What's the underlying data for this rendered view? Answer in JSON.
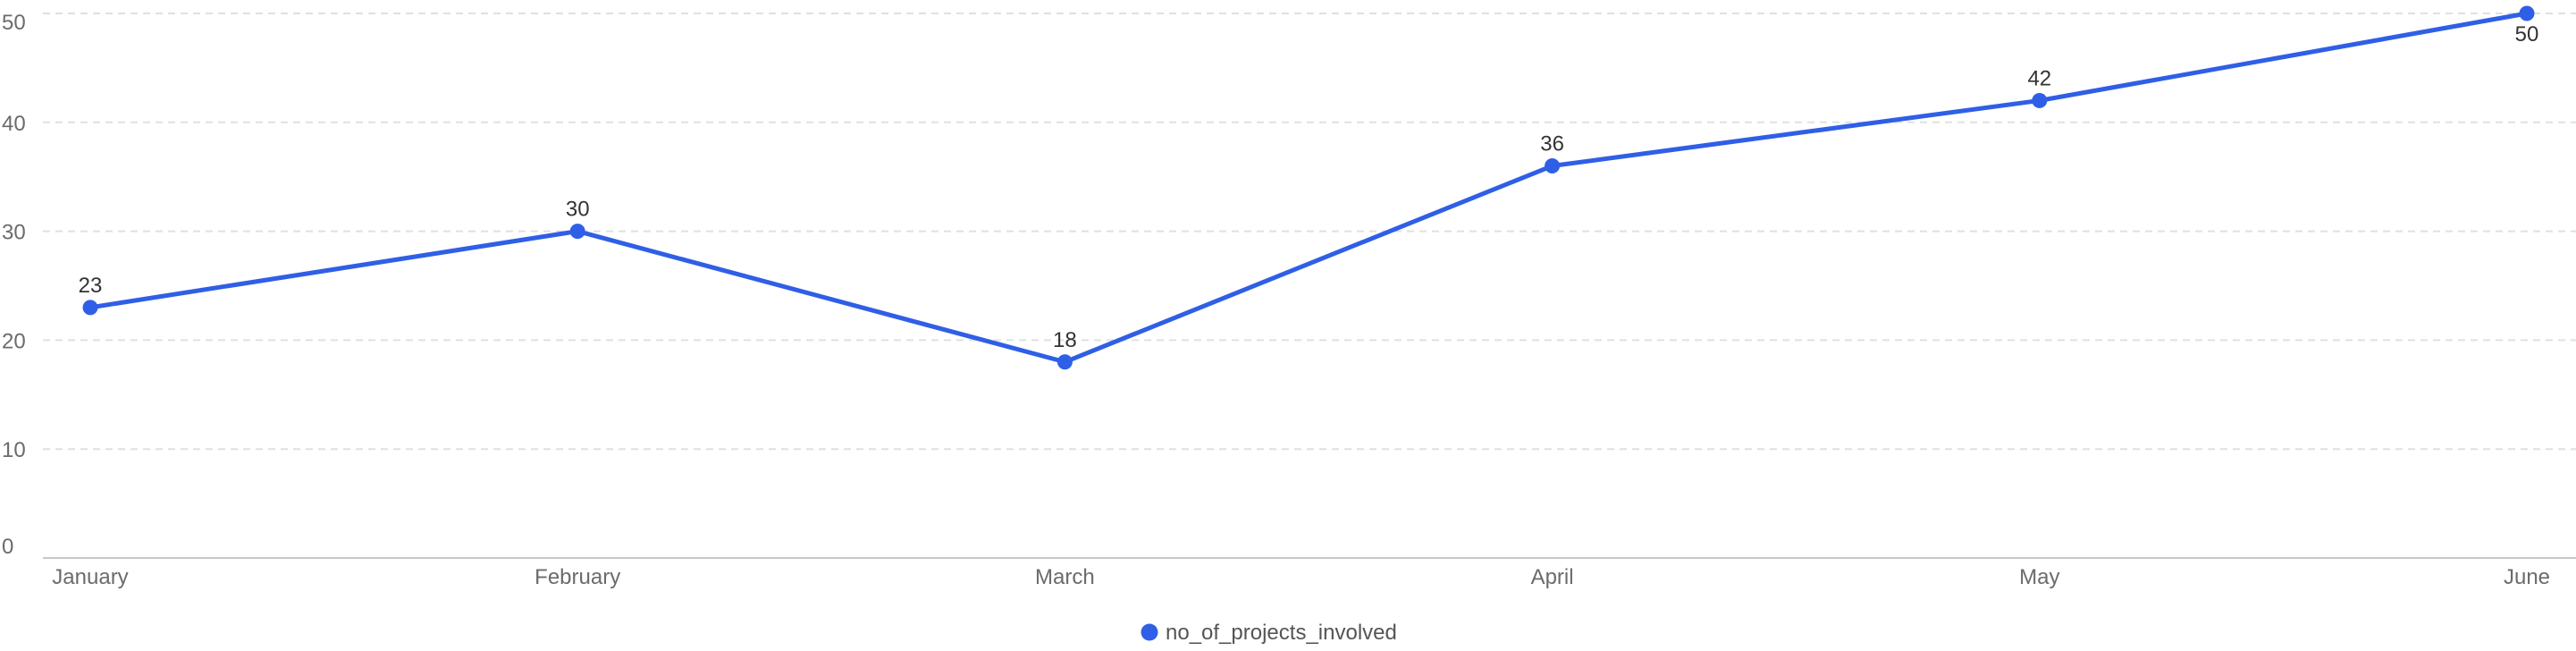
{
  "chart_data": {
    "type": "line",
    "categories": [
      "January",
      "February",
      "March",
      "April",
      "May",
      "June"
    ],
    "series": [
      {
        "name": "no_of_projects_involved",
        "values": [
          23,
          30,
          18,
          36,
          42,
          50
        ],
        "color": "#2f5fe6"
      }
    ],
    "ylim": [
      0,
      50
    ],
    "yticks": [
      0,
      10,
      20,
      30,
      40,
      50
    ],
    "grid": true,
    "legend": "bottom-center",
    "data_labels": true
  }
}
